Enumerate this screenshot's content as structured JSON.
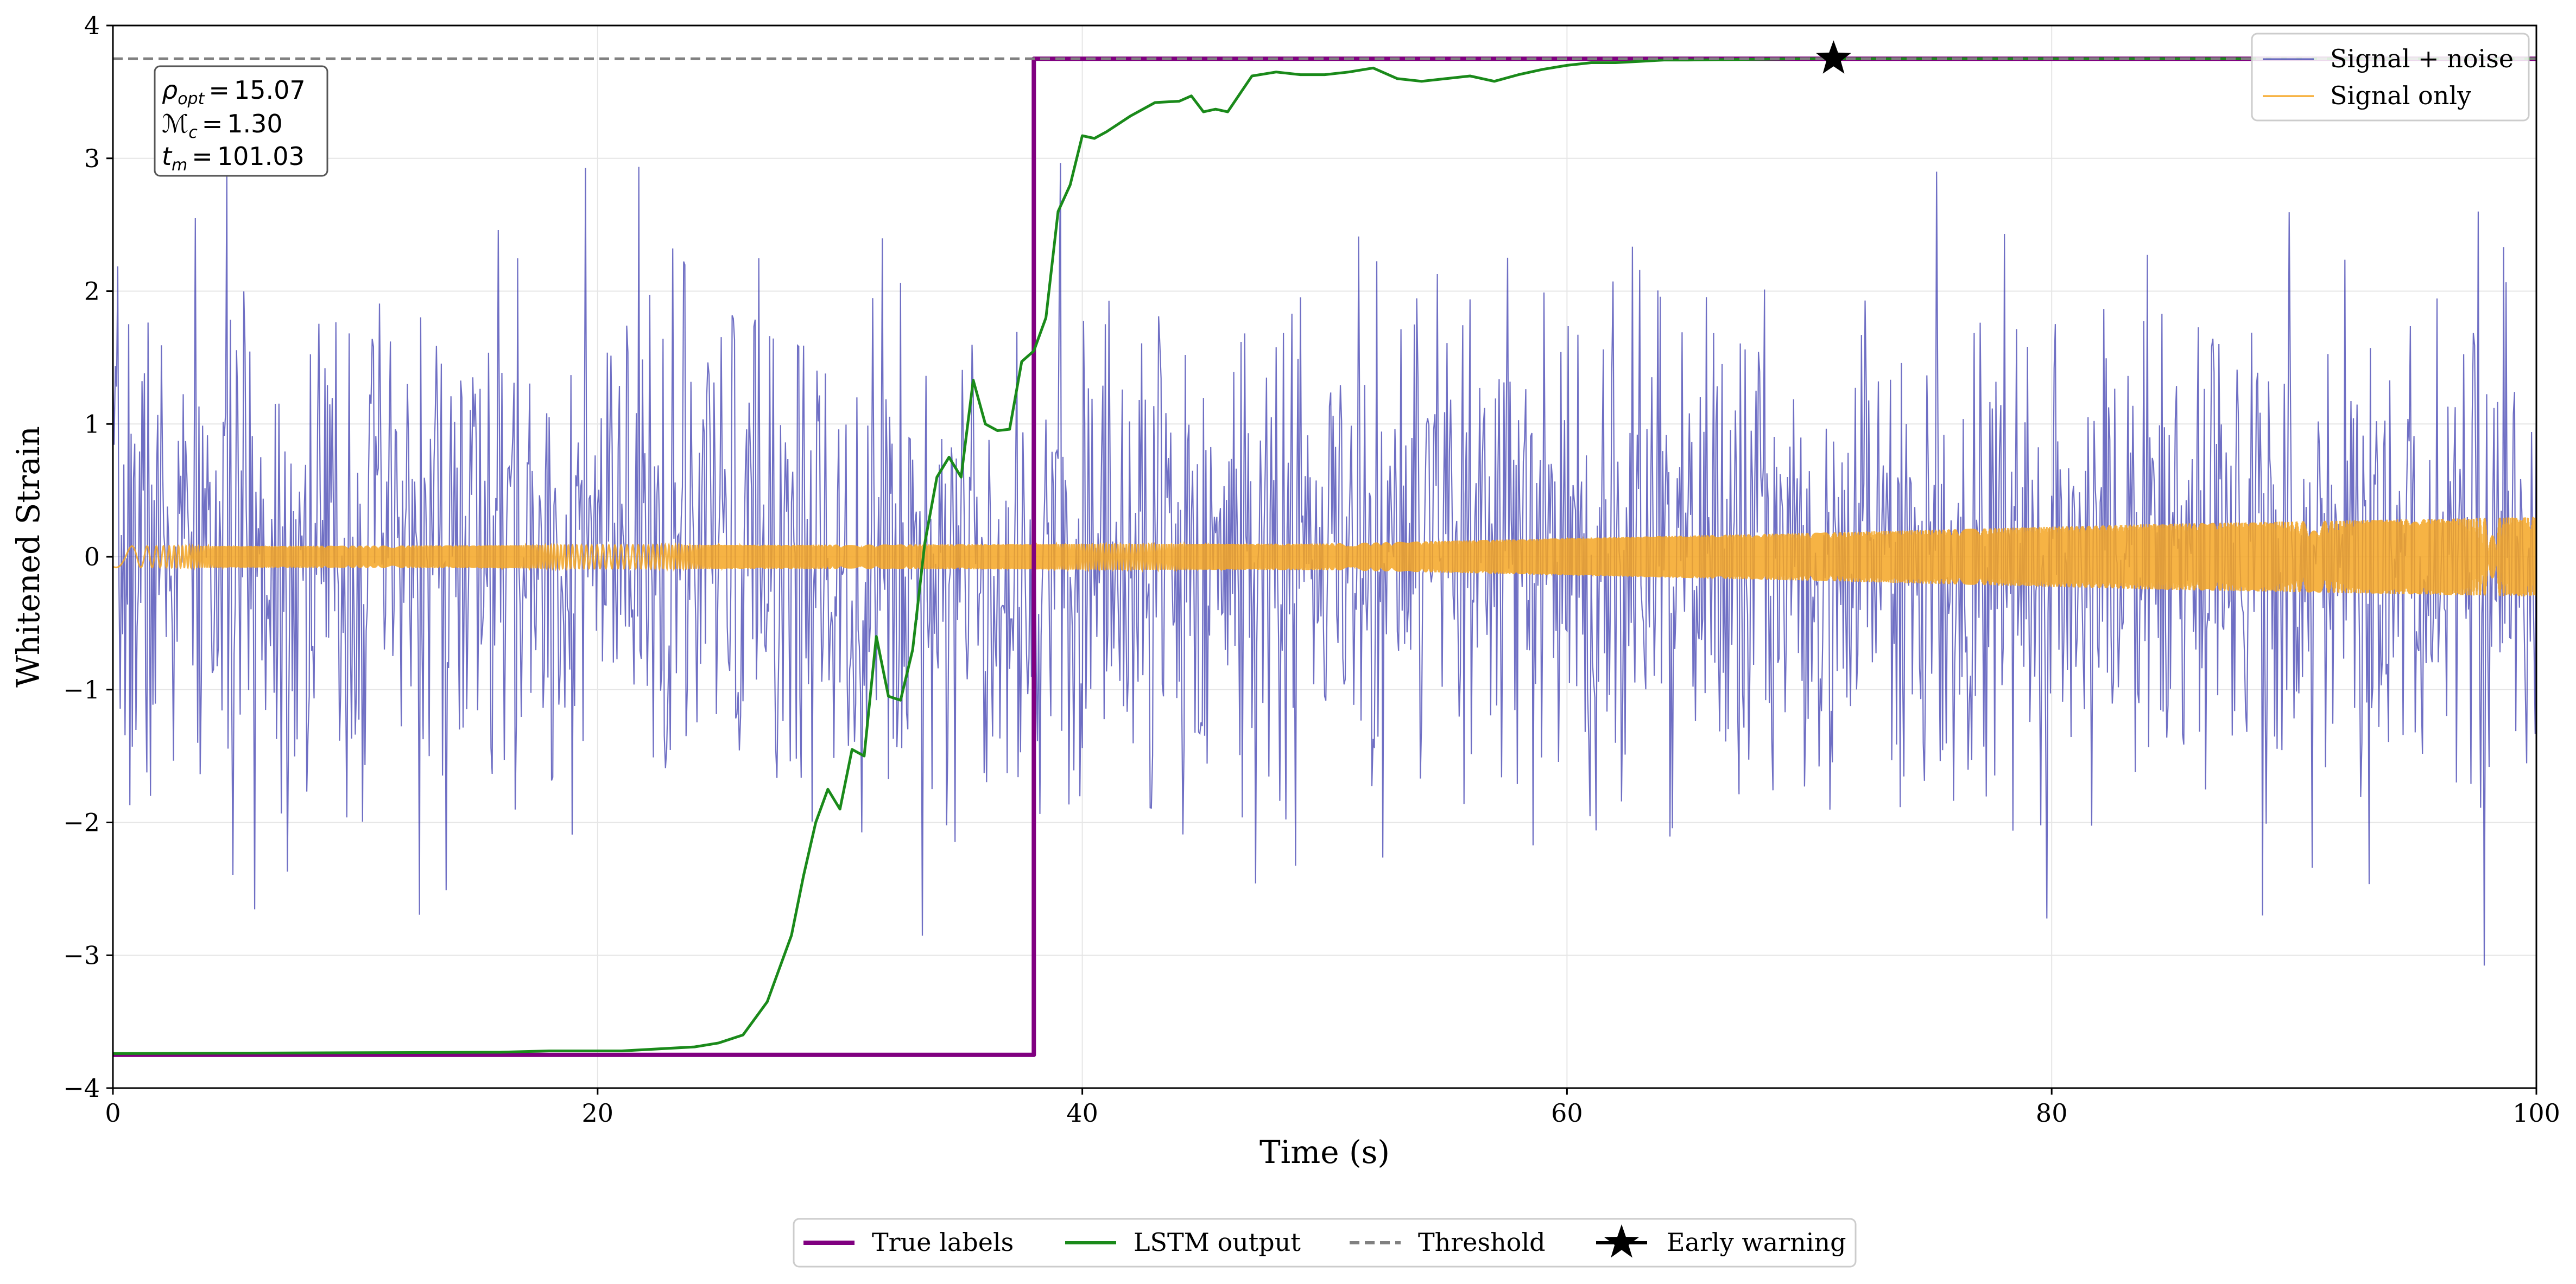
{
  "chart_data": {
    "type": "line",
    "xlabel": "Time (s)",
    "ylabel": "Whitened Strain",
    "xlim": [
      0,
      100
    ],
    "ylim": [
      -4,
      4
    ],
    "xticks": [
      0,
      20,
      40,
      60,
      80,
      100
    ],
    "yticks": [
      -4,
      -3,
      -2,
      -1,
      0,
      1,
      2,
      3,
      4
    ],
    "ytick_labels": [
      "−4",
      "−3",
      "−2",
      "−1",
      "0",
      "1",
      "2",
      "3",
      "4"
    ],
    "grid": true,
    "info_box": {
      "rho_label": "ρ",
      "rho_sub": "opt",
      "rho_value": "15.07",
      "mc_label": "ℳ",
      "mc_sub": "c",
      "mc_value": "1.30",
      "tm_label": "t",
      "tm_sub": "m",
      "tm_value": "101.03",
      "equals": "="
    },
    "series": [
      {
        "name": "Signal + noise",
        "kind": "noise",
        "color": "#3f3fb0",
        "std": 0.95,
        "n_points": 2000,
        "seed": 7
      },
      {
        "name": "Signal only",
        "kind": "chirp",
        "color": "#f5a623",
        "amp_start": 0.08,
        "amp_end": 0.3,
        "envelope_points": [
          {
            "x": 0,
            "amp": 0.08
          },
          {
            "x": 50,
            "amp": 0.1
          },
          {
            "x": 70,
            "amp": 0.18
          },
          {
            "x": 85,
            "amp": 0.25
          },
          {
            "x": 100,
            "amp": 0.3
          }
        ]
      },
      {
        "name": "True labels",
        "kind": "step",
        "color": "#800080",
        "x": [
          0,
          38,
          38,
          100
        ],
        "y": [
          -3.75,
          -3.75,
          3.75,
          3.75
        ]
      },
      {
        "name": "LSTM output",
        "kind": "line",
        "color": "#1a8a1a",
        "x": [
          0,
          16,
          18,
          21,
          24,
          25,
          26,
          27,
          27.5,
          28,
          28.5,
          29,
          29.5,
          30,
          30.5,
          31,
          31.5,
          32,
          32.5,
          33,
          33.5,
          34,
          34.5,
          35,
          35.5,
          36,
          36.5,
          37,
          37.5,
          38,
          38.5,
          39,
          39.5,
          40,
          40.5,
          41,
          42,
          43,
          44,
          44.5,
          45,
          45.5,
          46,
          47,
          48,
          49,
          50,
          51,
          52,
          53,
          54,
          55,
          56,
          57,
          58,
          59,
          60,
          61,
          62,
          63,
          64,
          65,
          70,
          100
        ],
        "y": [
          -3.74,
          -3.73,
          -3.72,
          -3.72,
          -3.69,
          -3.66,
          -3.6,
          -3.35,
          -3.1,
          -2.85,
          -2.4,
          -2.0,
          -1.75,
          -1.9,
          -1.45,
          -1.5,
          -0.6,
          -1.05,
          -1.08,
          -0.7,
          0.1,
          0.6,
          0.75,
          0.6,
          1.33,
          1.0,
          0.95,
          0.96,
          1.47,
          1.55,
          1.8,
          2.6,
          2.8,
          3.17,
          3.15,
          3.2,
          3.32,
          3.42,
          3.43,
          3.47,
          3.35,
          3.37,
          3.35,
          3.62,
          3.65,
          3.63,
          3.63,
          3.65,
          3.68,
          3.6,
          3.58,
          3.6,
          3.62,
          3.58,
          3.63,
          3.67,
          3.7,
          3.72,
          3.72,
          3.73,
          3.74,
          3.74,
          3.75,
          3.75
        ]
      },
      {
        "name": "Threshold",
        "kind": "hline",
        "color": "#808080",
        "y": 3.75
      },
      {
        "name": "Early warning",
        "kind": "marker",
        "color": "#000000",
        "x": 71,
        "y": 3.75
      }
    ],
    "legend_upper": {
      "position": "top-right",
      "entries": [
        "Signal + noise",
        "Signal only"
      ]
    },
    "legend_lower": {
      "position": "bottom-center",
      "entries": [
        "True labels",
        "LSTM output",
        "Threshold",
        "Early warning"
      ]
    }
  }
}
